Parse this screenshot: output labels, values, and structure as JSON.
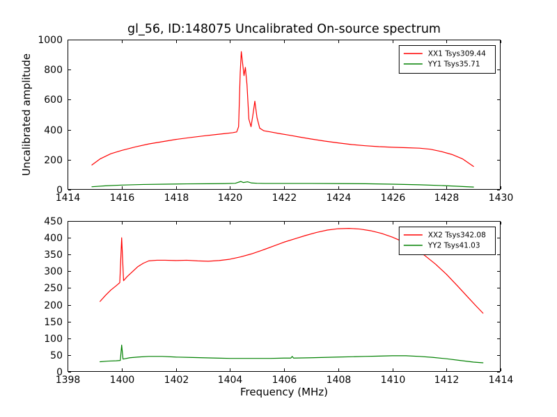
{
  "title": "gl_56, ID:148075 Uncalibrated On-source spectrum",
  "xlabel": "Frequency (MHz)",
  "ylabel": "Uncalibrated amplitude",
  "colors": {
    "xx_polarisation": "#ff0000",
    "yy_polarisation": "#008000",
    "frame": "#000000",
    "background": "#ffffff"
  },
  "chart_data": [
    {
      "type": "line",
      "name": "top-spectrum",
      "title": "",
      "xlim": [
        1414,
        1430
      ],
      "ylim": [
        0,
        1000
      ],
      "xticks": [
        1414,
        1416,
        1418,
        1420,
        1422,
        1424,
        1426,
        1428,
        1430
      ],
      "yticks": [
        0,
        200,
        400,
        600,
        800,
        1000
      ],
      "grid": false,
      "legend_position": "upper right",
      "series": [
        {
          "name": "XX1 Tsys309.44",
          "color": "#ff0000",
          "x": [
            1414.9,
            1415.2,
            1415.6,
            1416.0,
            1416.5,
            1417.0,
            1417.5,
            1418.0,
            1418.5,
            1419.0,
            1419.5,
            1419.8,
            1420.1,
            1420.25,
            1420.32,
            1420.38,
            1420.42,
            1420.47,
            1420.52,
            1420.57,
            1420.63,
            1420.7,
            1420.78,
            1420.85,
            1420.92,
            1421.0,
            1421.1,
            1421.25,
            1421.5,
            1421.8,
            1422.2,
            1422.6,
            1423.0,
            1423.5,
            1424.0,
            1424.5,
            1425.0,
            1425.5,
            1426.0,
            1426.5,
            1427.0,
            1427.4,
            1427.8,
            1428.2,
            1428.6,
            1429.0
          ],
          "y": [
            165,
            205,
            240,
            262,
            285,
            305,
            320,
            335,
            347,
            358,
            368,
            374,
            380,
            385,
            420,
            780,
            920,
            840,
            760,
            815,
            700,
            470,
            420,
            500,
            590,
            480,
            410,
            393,
            385,
            375,
            363,
            350,
            338,
            324,
            312,
            301,
            293,
            287,
            283,
            280,
            277,
            270,
            255,
            235,
            205,
            155
          ]
        },
        {
          "name": "YY1 Tsys35.71",
          "color": "#008000",
          "x": [
            1414.9,
            1415.4,
            1416.0,
            1416.8,
            1417.6,
            1418.4,
            1419.2,
            1419.8,
            1420.2,
            1420.4,
            1420.5,
            1420.65,
            1420.8,
            1421.0,
            1421.3,
            1422.0,
            1423.0,
            1424.0,
            1425.0,
            1426.0,
            1427.0,
            1427.8,
            1428.4,
            1429.0
          ],
          "y": [
            20,
            26,
            31,
            35,
            37,
            39,
            40,
            41,
            43,
            55,
            48,
            53,
            45,
            43,
            42,
            42,
            42,
            41,
            40,
            37,
            33,
            28,
            23,
            18
          ]
        }
      ]
    },
    {
      "type": "line",
      "name": "bottom-spectrum",
      "title": "",
      "xlim": [
        1398,
        1414
      ],
      "ylim": [
        0,
        450
      ],
      "xticks": [
        1398,
        1400,
        1402,
        1404,
        1406,
        1408,
        1410,
        1412,
        1414
      ],
      "yticks": [
        0,
        50,
        100,
        150,
        200,
        250,
        300,
        350,
        400,
        450
      ],
      "grid": false,
      "legend_position": "upper right",
      "series": [
        {
          "name": "XX2 Tsys342.08",
          "color": "#ff0000",
          "x": [
            1399.2,
            1399.4,
            1399.6,
            1399.8,
            1399.93,
            1400.0,
            1400.07,
            1400.2,
            1400.4,
            1400.6,
            1400.8,
            1401.0,
            1401.3,
            1401.6,
            1402.0,
            1402.4,
            1402.8,
            1403.2,
            1403.6,
            1404.0,
            1404.4,
            1404.8,
            1405.2,
            1405.6,
            1406.0,
            1406.4,
            1406.8,
            1407.2,
            1407.6,
            1408.0,
            1408.4,
            1408.8,
            1409.2,
            1409.6,
            1410.0,
            1410.4,
            1410.8,
            1411.2,
            1411.6,
            1412.0,
            1412.4,
            1412.8,
            1413.1,
            1413.35
          ],
          "y": [
            210,
            228,
            244,
            257,
            266,
            400,
            272,
            284,
            299,
            314,
            324,
            331,
            333,
            333,
            332,
            333,
            331,
            330,
            332,
            336,
            343,
            352,
            363,
            375,
            387,
            397,
            407,
            416,
            423,
            427,
            428,
            426,
            421,
            413,
            402,
            388,
            369,
            347,
            321,
            291,
            257,
            222,
            196,
            175
          ]
        },
        {
          "name": "YY2 Tsys41.03",
          "color": "#008000",
          "x": [
            1399.2,
            1399.5,
            1399.8,
            1399.95,
            1400.0,
            1400.05,
            1400.3,
            1400.6,
            1401.0,
            1401.5,
            1402.0,
            1402.5,
            1403.0,
            1403.5,
            1404.0,
            1404.5,
            1405.0,
            1405.5,
            1406.0,
            1406.25,
            1406.3,
            1406.35,
            1407.0,
            1407.5,
            1408.0,
            1408.5,
            1409.0,
            1409.5,
            1410.0,
            1410.5,
            1411.0,
            1411.5,
            1412.0,
            1412.5,
            1413.0,
            1413.35
          ],
          "y": [
            30,
            32,
            33,
            34,
            80,
            38,
            42,
            44,
            46,
            46,
            44,
            43,
            42,
            41,
            40,
            40,
            40,
            40,
            41,
            41,
            46,
            41,
            42,
            43,
            44,
            45,
            46,
            47,
            48,
            48,
            46,
            43,
            39,
            34,
            29,
            27
          ]
        }
      ]
    }
  ]
}
